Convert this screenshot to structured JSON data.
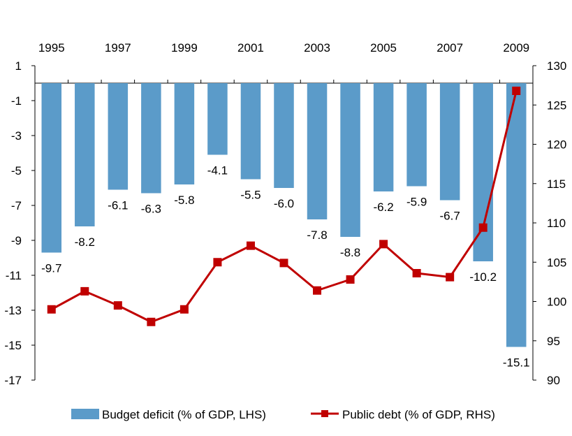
{
  "chart_data": {
    "type": "bar+line",
    "title": "",
    "categories": [
      "1995",
      "1996",
      "1997",
      "1998",
      "1999",
      "2000",
      "2001",
      "2002",
      "2003",
      "2004",
      "2005",
      "2006",
      "2007",
      "2008",
      "2009"
    ],
    "x_tick_labels": [
      "1995",
      "1997",
      "1999",
      "2001",
      "2003",
      "2005",
      "2007",
      "2009"
    ],
    "series": [
      {
        "name": "Budget deficit (% of GDP, LHS)",
        "type": "bar",
        "axis": "left",
        "color": "#5b9bc9",
        "values": [
          -9.7,
          -8.2,
          -6.1,
          -6.3,
          -5.8,
          -4.1,
          -5.5,
          -6.0,
          -7.8,
          -8.8,
          -6.2,
          -5.9,
          -6.7,
          -10.2,
          -15.1
        ],
        "data_labels": [
          "-9.7",
          "-8.2",
          "-6.1",
          "-6.3",
          "-5.8",
          "-4.1",
          "-5.5",
          "-6.0",
          "-7.8",
          "-8.8",
          "-6.2",
          "-5.9",
          "-6.7",
          "-10.2",
          "-15.1"
        ]
      },
      {
        "name": "Public debt (% of GDP, RHS)",
        "type": "line",
        "axis": "right",
        "color": "#c00000",
        "values": [
          99.0,
          101.3,
          99.5,
          97.4,
          99.0,
          105.0,
          107.1,
          104.9,
          101.4,
          102.8,
          107.3,
          103.6,
          103.1,
          109.4,
          126.8
        ]
      }
    ],
    "y_left": {
      "min": -17,
      "max": 1,
      "ticks": [
        1,
        -1,
        -3,
        -5,
        -7,
        -9,
        -11,
        -13,
        -15,
        -17
      ],
      "tick_labels": [
        "1",
        "-1",
        "-3",
        "-5",
        "-7",
        "-9",
        "-11",
        "-13",
        "-15",
        "-17"
      ]
    },
    "y_right": {
      "min": 90,
      "max": 130,
      "ticks": [
        130,
        125,
        120,
        115,
        110,
        105,
        100,
        95,
        90
      ],
      "tick_labels": [
        "130",
        "125",
        "120",
        "115",
        "110",
        "105",
        "100",
        "95",
        "90"
      ]
    },
    "legend": {
      "position": "bottom"
    },
    "grid": false
  }
}
